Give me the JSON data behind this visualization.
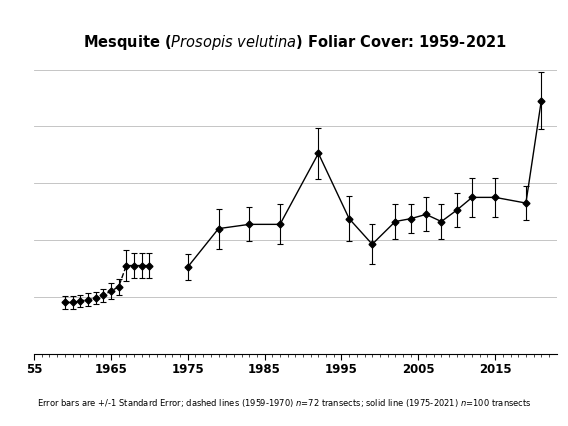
{
  "caption": "Error bars are +/-1 Standard Error; dashed lines (1959-1970) $n$=72 transects; solid line (1975-2021) $n$=100 transects",
  "dashed_years": [
    1959,
    1960,
    1961,
    1962,
    1963,
    1964,
    1965,
    1966,
    1967,
    1968,
    1969,
    1970
  ],
  "dashed_values": [
    1.8,
    1.8,
    1.85,
    1.9,
    1.95,
    2.05,
    2.2,
    2.35,
    3.1,
    3.1,
    3.1,
    3.1
  ],
  "dashed_errors": [
    0.22,
    0.22,
    0.22,
    0.22,
    0.22,
    0.22,
    0.28,
    0.28,
    0.55,
    0.45,
    0.45,
    0.45
  ],
  "solid_years": [
    1975,
    1979,
    1983,
    1987,
    1992,
    1996,
    1999,
    2002,
    2004,
    2006,
    2008,
    2010,
    2012,
    2015,
    2019,
    2021
  ],
  "solid_values": [
    3.05,
    4.4,
    4.55,
    4.55,
    7.05,
    4.75,
    3.85,
    4.65,
    4.75,
    4.9,
    4.65,
    5.05,
    5.5,
    5.5,
    5.3,
    8.9
  ],
  "solid_errors": [
    0.45,
    0.7,
    0.6,
    0.7,
    0.9,
    0.8,
    0.7,
    0.6,
    0.5,
    0.6,
    0.6,
    0.6,
    0.7,
    0.7,
    0.6,
    1.0
  ],
  "xlim": [
    1955,
    2023
  ],
  "ylim": [
    0,
    10.5
  ],
  "yticks": [
    0,
    2,
    4,
    6,
    8,
    10
  ],
  "xtick_positions": [
    1955,
    1965,
    1975,
    1985,
    1995,
    2005,
    2015
  ],
  "xtick_labels": [
    "55",
    "1965",
    "1975",
    "1985",
    "1995",
    "2005",
    "2015"
  ],
  "grid_color": "#bbbbbb",
  "line_color": "#000000",
  "background_color": "#ffffff",
  "top_bar_color": "#4a5e1a",
  "bottom_bar_color": "#4a5e1a"
}
